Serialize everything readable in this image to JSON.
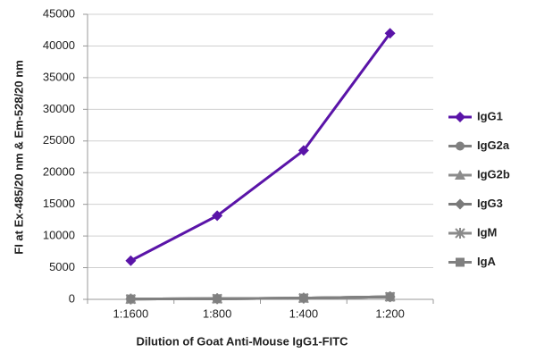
{
  "chart_data": {
    "type": "line",
    "x_label": "Dilution of Goat Anti-Mouse IgG1-FITC",
    "y_label": "FI at Ex-485/20 nm & Em-528/20 nm",
    "categories": [
      "1:1600",
      "1:800",
      "1:400",
      "1:200"
    ],
    "series": [
      {
        "name": "IgG1",
        "color": "#5a14a8",
        "marker": "diamond",
        "values": [
          6100,
          13200,
          23500,
          42000
        ]
      },
      {
        "name": "IgG2a",
        "color": "#808080",
        "marker": "circle",
        "values": [
          50,
          100,
          200,
          400
        ]
      },
      {
        "name": "IgG2b",
        "color": "#8c8c8c",
        "marker": "triangle",
        "values": [
          50,
          100,
          200,
          400
        ]
      },
      {
        "name": "IgG3",
        "color": "#7a7a7a",
        "marker": "diamond",
        "values": [
          50,
          100,
          200,
          400
        ]
      },
      {
        "name": "IgM",
        "color": "#8a8a8a",
        "marker": "star",
        "values": [
          50,
          100,
          200,
          400
        ]
      },
      {
        "name": "IgA",
        "color": "#808080",
        "marker": "square",
        "values": [
          50,
          100,
          200,
          400
        ]
      }
    ],
    "ylim": [
      0,
      45000
    ],
    "yticks": [
      0,
      5000,
      10000,
      15000,
      20000,
      25000,
      30000,
      35000,
      40000,
      45000
    ],
    "grid": true,
    "legend": "right"
  }
}
